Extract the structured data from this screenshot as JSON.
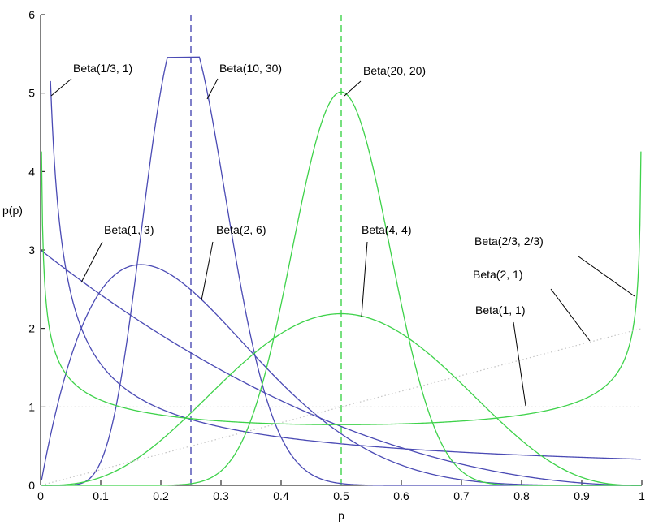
{
  "chart_data": {
    "type": "line",
    "title": "",
    "xlabel": "p",
    "ylabel": "p(p)",
    "xlim": [
      0,
      1
    ],
    "ylim": [
      0,
      6
    ],
    "grid": false,
    "x_ticks": [
      "0",
      "0.1",
      "0.2",
      "0.3",
      "0.4",
      "0.5",
      "0.6",
      "0.7",
      "0.8",
      "0.9",
      "1"
    ],
    "y_ticks": [
      "0",
      "1",
      "2",
      "3",
      "4",
      "5",
      "6"
    ],
    "colors": {
      "blue": "#4a4ab4",
      "green": "#3ed24a",
      "axes": "#000000",
      "dotted": "#c4c4c4"
    },
    "series": [
      {
        "name": "Beta(1/3, 1)",
        "a": 0.3333,
        "b": 1,
        "color": "blue",
        "style": "solid"
      },
      {
        "name": "Beta(10, 30)",
        "a": 10,
        "b": 30,
        "color": "blue",
        "style": "solid"
      },
      {
        "name": "Beta(1, 3)",
        "a": 1,
        "b": 3,
        "color": "blue",
        "style": "solid"
      },
      {
        "name": "Beta(2, 6)",
        "a": 2,
        "b": 6,
        "color": "blue",
        "style": "solid"
      },
      {
        "name": "Beta(20, 20)",
        "a": 20,
        "b": 20,
        "color": "green",
        "style": "solid"
      },
      {
        "name": "Beta(4, 4)",
        "a": 4,
        "b": 4,
        "color": "green",
        "style": "solid"
      },
      {
        "name": "Beta(2/3, 2/3)",
        "a": 0.6667,
        "b": 0.6667,
        "color": "green",
        "style": "solid"
      },
      {
        "name": "Beta(2, 1)",
        "a": 2,
        "b": 1,
        "color": "dotted",
        "style": "dotted"
      },
      {
        "name": "Beta(1, 1)",
        "a": 1,
        "b": 1,
        "color": "dotted",
        "style": "dotted"
      }
    ],
    "vlines": [
      {
        "x": 0.25,
        "color": "blue",
        "style": "dashed"
      },
      {
        "x": 0.5,
        "color": "green",
        "style": "dashed"
      }
    ]
  }
}
